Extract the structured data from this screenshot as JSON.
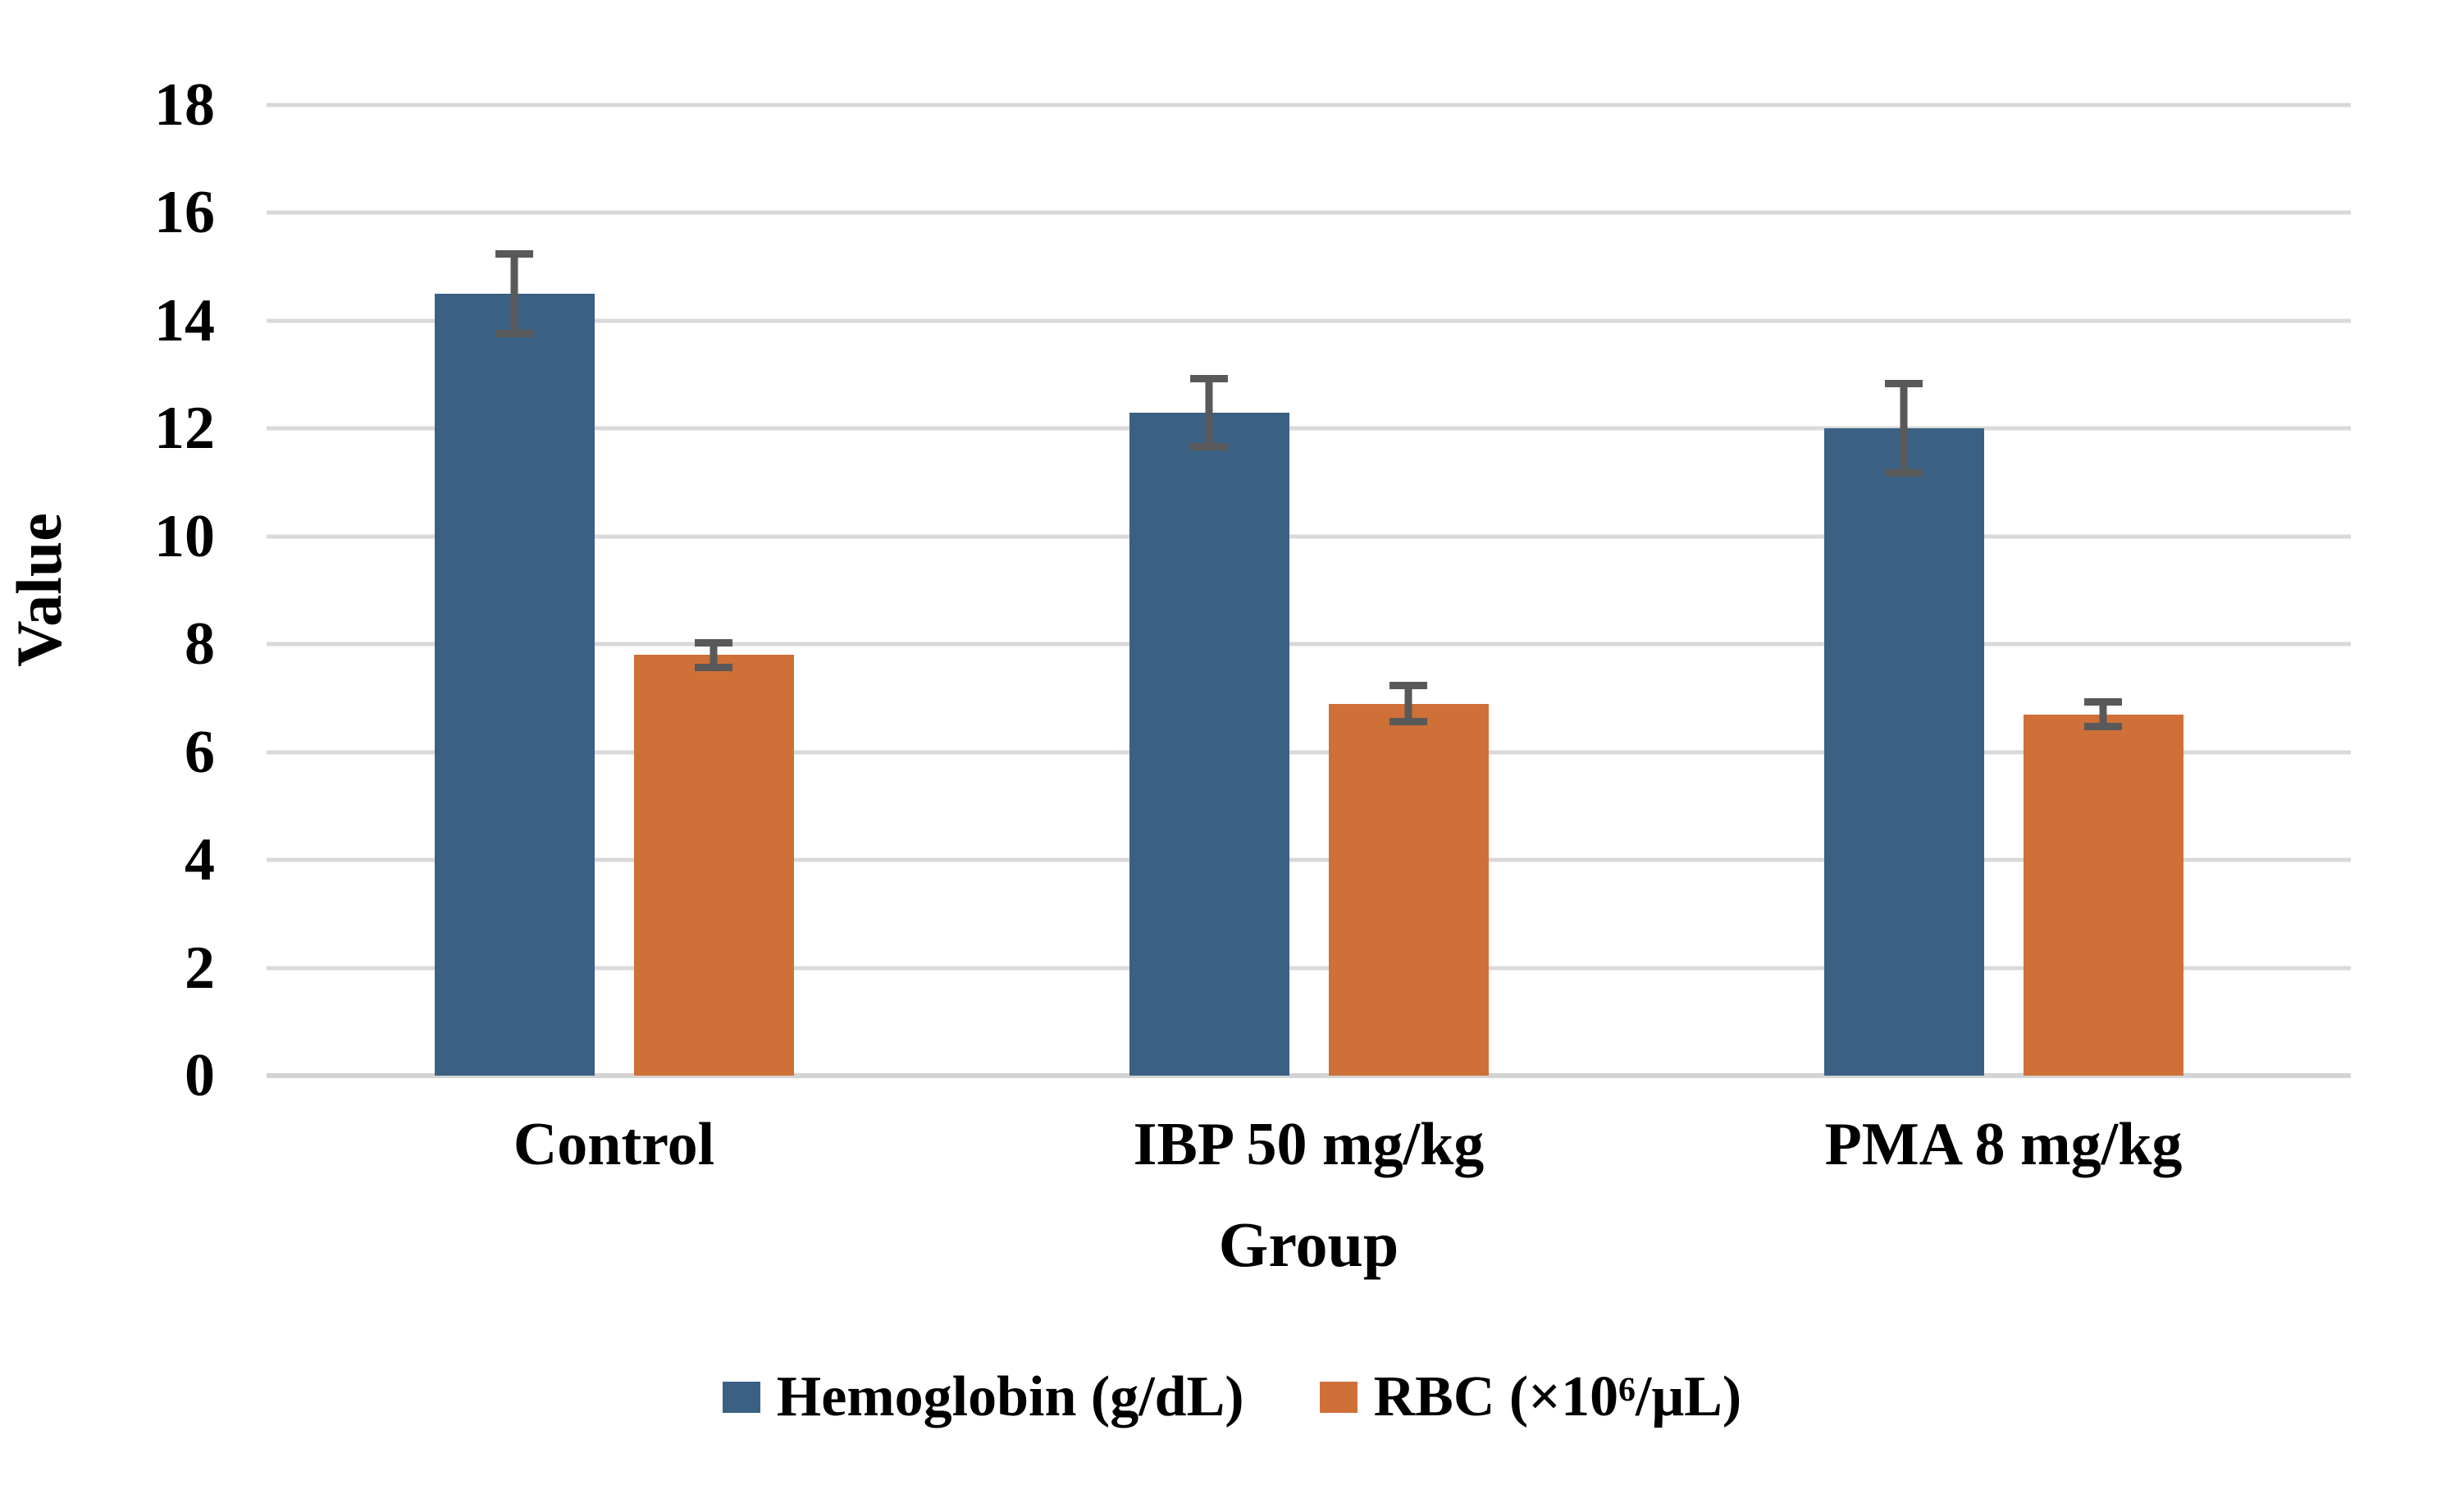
{
  "chart_data": {
    "type": "bar",
    "title": "",
    "xlabel": "Group",
    "ylabel": "Value",
    "ylim": [
      0,
      18
    ],
    "yticks": [
      0,
      2,
      4,
      6,
      8,
      10,
      12,
      14,
      16,
      18
    ],
    "categories": [
      "Control",
      "IBP 50 mg/kg",
      "PMA 8 mg/kg"
    ],
    "series": [
      {
        "name": "Hemoglobin (g/dL)",
        "color": "#3A6183",
        "values": [
          14.5,
          12.3,
          12.0
        ],
        "errors": [
          0.8,
          0.7,
          0.9
        ]
      },
      {
        "name": "RBC (×10⁶/μL)",
        "color": "#CF7038",
        "values": [
          7.8,
          6.9,
          6.7
        ],
        "errors": [
          0.3,
          0.4,
          0.3
        ]
      }
    ],
    "grid": true,
    "legend_position": "bottom",
    "gridline_color": "#D9D9D9",
    "error_bar_color": "#595959",
    "text_color": "#000000"
  }
}
